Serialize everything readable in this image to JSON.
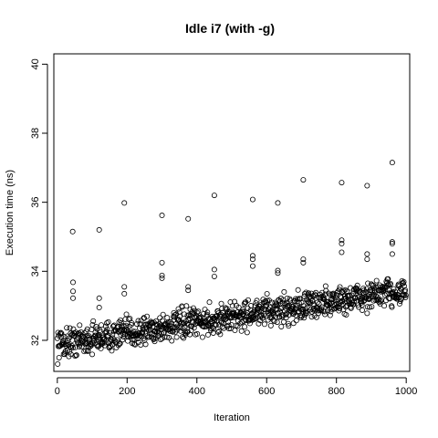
{
  "chart_data": {
    "type": "scatter",
    "title": "Idle i7 (with -g)",
    "xlabel": "Iteration",
    "ylabel": "Execution time (ns)",
    "xlim": [
      -10,
      1010
    ],
    "ylim": [
      31.1,
      40.3
    ],
    "xticks": [
      0,
      200,
      400,
      600,
      800,
      1000
    ],
    "yticks": [
      32,
      34,
      36,
      38,
      40
    ],
    "grid": false,
    "legend": "none",
    "marker": "open-circle",
    "color": "#000000",
    "series": [
      {
        "trend": {
          "x": [
            0,
            1000
          ],
          "y": [
            31.9,
            33.45
          ]
        },
        "outliers": [
          {
            "x": 44,
            "y": 35.15
          },
          {
            "x": 120,
            "y": 35.2
          },
          {
            "x": 192,
            "y": 35.98
          },
          {
            "x": 300,
            "y": 35.62
          },
          {
            "x": 375,
            "y": 35.52
          },
          {
            "x": 450,
            "y": 36.2
          },
          {
            "x": 560,
            "y": 36.08
          },
          {
            "x": 632,
            "y": 35.98
          },
          {
            "x": 705,
            "y": 36.65
          },
          {
            "x": 815,
            "y": 36.57
          },
          {
            "x": 888,
            "y": 36.48
          },
          {
            "x": 960,
            "y": 37.15
          },
          {
            "x": 45,
            "y": 33.68
          },
          {
            "x": 45,
            "y": 33.42
          },
          {
            "x": 45,
            "y": 33.22
          },
          {
            "x": 120,
            "y": 33.22
          },
          {
            "x": 120,
            "y": 32.95
          },
          {
            "x": 192,
            "y": 33.55
          },
          {
            "x": 192,
            "y": 33.35
          },
          {
            "x": 300,
            "y": 34.25
          },
          {
            "x": 300,
            "y": 33.88
          },
          {
            "x": 300,
            "y": 33.8
          },
          {
            "x": 375,
            "y": 33.55
          },
          {
            "x": 375,
            "y": 33.45
          },
          {
            "x": 450,
            "y": 34.05
          },
          {
            "x": 450,
            "y": 33.85
          },
          {
            "x": 560,
            "y": 34.45
          },
          {
            "x": 560,
            "y": 34.35
          },
          {
            "x": 560,
            "y": 34.15
          },
          {
            "x": 632,
            "y": 34.02
          },
          {
            "x": 632,
            "y": 33.95
          },
          {
            "x": 705,
            "y": 34.35
          },
          {
            "x": 705,
            "y": 34.25
          },
          {
            "x": 815,
            "y": 34.9
          },
          {
            "x": 815,
            "y": 34.8
          },
          {
            "x": 815,
            "y": 34.55
          },
          {
            "x": 888,
            "y": 34.5
          },
          {
            "x": 888,
            "y": 34.35
          },
          {
            "x": 960,
            "y": 34.85
          },
          {
            "x": 960,
            "y": 34.8
          },
          {
            "x": 960,
            "y": 34.5
          }
        ]
      }
    ]
  }
}
